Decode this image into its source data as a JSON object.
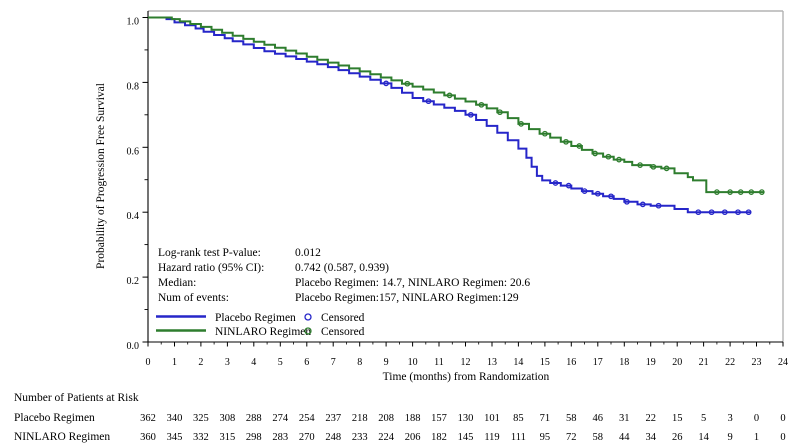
{
  "chart_data": {
    "type": "line",
    "subtype": "kaplan-meier-step",
    "title": "",
    "xlabel": "Time (months) from Randomization",
    "ylabel": "Probability of Progression Free Survival",
    "xlim": [
      0,
      24
    ],
    "ylim": [
      0,
      1.0
    ],
    "grid": false,
    "legend_position": "inside-lower-left",
    "x_ticks": [
      0,
      1,
      2,
      3,
      4,
      5,
      6,
      7,
      8,
      9,
      10,
      11,
      12,
      13,
      14,
      15,
      16,
      17,
      18,
      19,
      20,
      21,
      22,
      23,
      24
    ],
    "y_ticks": [
      1.0,
      0.8,
      0.6,
      0.4,
      0.2,
      0.0
    ],
    "y_tick_labels": [
      "1.0",
      "0.8",
      "0.6",
      "0.4",
      "0.2",
      "0.0"
    ],
    "y_minor_ticks": [
      0.9,
      0.7,
      0.5,
      0.3,
      0.1
    ],
    "series": [
      {
        "name": "Placebo Regimen",
        "color": "#2626c9",
        "median_months": 14.7,
        "num_events": 157,
        "end_time": 22.8,
        "steps": [
          [
            0,
            1.0
          ],
          [
            0.7,
            0.995
          ],
          [
            1,
            0.985
          ],
          [
            1.4,
            0.976
          ],
          [
            1.8,
            0.966
          ],
          [
            2.1,
            0.956
          ],
          [
            2.5,
            0.946
          ],
          [
            2.9,
            0.936
          ],
          [
            3.2,
            0.927
          ],
          [
            3.6,
            0.917
          ],
          [
            4,
            0.906
          ],
          [
            4.4,
            0.896
          ],
          [
            4.8,
            0.888
          ],
          [
            5.2,
            0.88
          ],
          [
            5.6,
            0.872
          ],
          [
            6,
            0.864
          ],
          [
            6.4,
            0.856
          ],
          [
            6.8,
            0.847
          ],
          [
            7.2,
            0.838
          ],
          [
            7.6,
            0.828
          ],
          [
            8,
            0.818
          ],
          [
            8.4,
            0.808
          ],
          [
            8.8,
            0.797
          ],
          [
            9.2,
            0.783
          ],
          [
            9.6,
            0.768
          ],
          [
            10,
            0.752
          ],
          [
            10.4,
            0.742
          ],
          [
            10.8,
            0.732
          ],
          [
            11.2,
            0.722
          ],
          [
            11.6,
            0.712
          ],
          [
            12,
            0.7
          ],
          [
            12.4,
            0.684
          ],
          [
            12.8,
            0.666
          ],
          [
            13.2,
            0.645
          ],
          [
            13.6,
            0.622
          ],
          [
            14,
            0.596
          ],
          [
            14.3,
            0.568
          ],
          [
            14.5,
            0.54
          ],
          [
            14.7,
            0.512
          ],
          [
            14.9,
            0.498
          ],
          [
            15.2,
            0.49
          ],
          [
            15.6,
            0.482
          ],
          [
            16,
            0.473
          ],
          [
            16.4,
            0.465
          ],
          [
            16.8,
            0.457
          ],
          [
            17.2,
            0.449
          ],
          [
            17.6,
            0.441
          ],
          [
            18,
            0.432
          ],
          [
            18.5,
            0.424
          ],
          [
            19,
            0.42
          ],
          [
            19.9,
            0.41
          ],
          [
            20.4,
            0.4
          ],
          [
            22.8,
            0.4
          ]
        ],
        "censor_times": [
          9.0,
          10.6,
          12.2,
          15.4,
          15.9,
          16.5,
          17.0,
          17.5,
          18.1,
          18.7,
          19.3,
          20.8,
          21.3,
          21.8,
          22.3,
          22.7
        ]
      },
      {
        "name": "NINLARO Regimen",
        "color": "#2e7d2e",
        "median_months": 20.6,
        "num_events": 129,
        "end_time": 23.3,
        "steps": [
          [
            0,
            1.0
          ],
          [
            0.9,
            0.995
          ],
          [
            1.2,
            0.988
          ],
          [
            1.6,
            0.98
          ],
          [
            2,
            0.971
          ],
          [
            2.4,
            0.962
          ],
          [
            2.8,
            0.953
          ],
          [
            3.2,
            0.944
          ],
          [
            3.6,
            0.934
          ],
          [
            4,
            0.925
          ],
          [
            4.4,
            0.916
          ],
          [
            4.8,
            0.907
          ],
          [
            5.2,
            0.898
          ],
          [
            5.6,
            0.889
          ],
          [
            6,
            0.879
          ],
          [
            6.4,
            0.87
          ],
          [
            6.8,
            0.861
          ],
          [
            7.2,
            0.852
          ],
          [
            7.6,
            0.843
          ],
          [
            8,
            0.834
          ],
          [
            8.4,
            0.825
          ],
          [
            8.8,
            0.815
          ],
          [
            9.2,
            0.806
          ],
          [
            9.6,
            0.796
          ],
          [
            10,
            0.787
          ],
          [
            10.4,
            0.778
          ],
          [
            10.8,
            0.769
          ],
          [
            11.2,
            0.76
          ],
          [
            11.6,
            0.75
          ],
          [
            12,
            0.741
          ],
          [
            12.4,
            0.731
          ],
          [
            12.8,
            0.72
          ],
          [
            13.2,
            0.708
          ],
          [
            13.6,
            0.69
          ],
          [
            14,
            0.672
          ],
          [
            14.4,
            0.656
          ],
          [
            14.8,
            0.642
          ],
          [
            15.2,
            0.63
          ],
          [
            15.6,
            0.617
          ],
          [
            16,
            0.604
          ],
          [
            16.4,
            0.592
          ],
          [
            16.8,
            0.581
          ],
          [
            17.2,
            0.571
          ],
          [
            17.6,
            0.562
          ],
          [
            18,
            0.555
          ],
          [
            18.3,
            0.545
          ],
          [
            19,
            0.54
          ],
          [
            19.4,
            0.535
          ],
          [
            19.9,
            0.52
          ],
          [
            20.4,
            0.508
          ],
          [
            20.6,
            0.498
          ],
          [
            21.1,
            0.462
          ],
          [
            23.3,
            0.462
          ]
        ],
        "censor_times": [
          9.8,
          11.4,
          12.6,
          13.3,
          14.1,
          15.0,
          15.8,
          16.3,
          16.9,
          17.4,
          17.8,
          18.6,
          19.1,
          19.6,
          21.5,
          22.0,
          22.4,
          22.8,
          23.2
        ]
      }
    ],
    "annotations": {
      "rows": [
        {
          "label": "Log-rank test P-value:",
          "value": "0.012"
        },
        {
          "label": "Hazard ratio (95% CI):",
          "value": "0.742 (0.587, 0.939)"
        },
        {
          "label": "Median:",
          "value": "Placebo Regimen: 14.7, NINLARO Regimen: 20.6"
        },
        {
          "label": "Num of events:",
          "value": "Placebo Regimen:157, NINLARO Regimen:129"
        }
      ]
    },
    "legend": {
      "items": [
        {
          "label": "Placebo Regimen",
          "censored_label": "Censored"
        },
        {
          "label": "NINLARO Regimen",
          "censored_label": "Censored"
        }
      ]
    },
    "risk_table": {
      "title": "Number of Patients at Risk",
      "rows": [
        {
          "label": "Placebo Regimen",
          "values": [
            362,
            340,
            325,
            308,
            288,
            274,
            254,
            237,
            218,
            208,
            188,
            157,
            130,
            101,
            85,
            71,
            58,
            46,
            31,
            22,
            15,
            5,
            3,
            0,
            0
          ]
        },
        {
          "label": "NINLARO Regimen",
          "values": [
            360,
            345,
            332,
            315,
            298,
            283,
            270,
            248,
            233,
            224,
            206,
            182,
            145,
            119,
            111,
            95,
            72,
            58,
            44,
            34,
            26,
            14,
            9,
            1,
            0
          ]
        }
      ]
    }
  }
}
